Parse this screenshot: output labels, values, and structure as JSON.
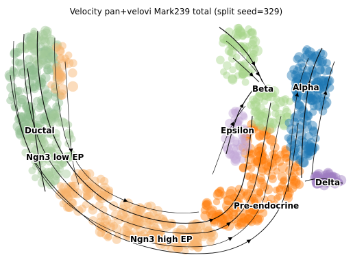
{
  "chart_data": {
    "type": "scatter",
    "title": "Velocity pan+velovi Mark239 total (split seed=329)",
    "xlabel": "",
    "ylabel": "",
    "grid": false,
    "legend": "on data",
    "clusters": [
      {
        "name": "Ductal",
        "color": "#8fbc8f"
      },
      {
        "name": "Ngn3 low EP",
        "color": "#a5c99a"
      },
      {
        "name": "Ngn3 high EP",
        "color": "#f7b26b"
      },
      {
        "name": "Pre-endocrine",
        "color": "#ff7f0e"
      },
      {
        "name": "Beta",
        "color": "#a6d48a"
      },
      {
        "name": "Alpha",
        "color": "#1f77b4"
      },
      {
        "name": "Delta",
        "color": "#9e7cc1"
      },
      {
        "name": "Epsilon",
        "color": "#c4a9d6"
      }
    ],
    "labels": [
      {
        "text": "Ductal"
      },
      {
        "text": "Ngn3 low EP"
      },
      {
        "text": "Ngn3 high EP"
      },
      {
        "text": "Pre-endocrine"
      },
      {
        "text": "Beta"
      },
      {
        "text": "Alpha"
      },
      {
        "text": "Delta"
      },
      {
        "text": "Epsilon"
      }
    ],
    "streamline_color": "#000000"
  }
}
